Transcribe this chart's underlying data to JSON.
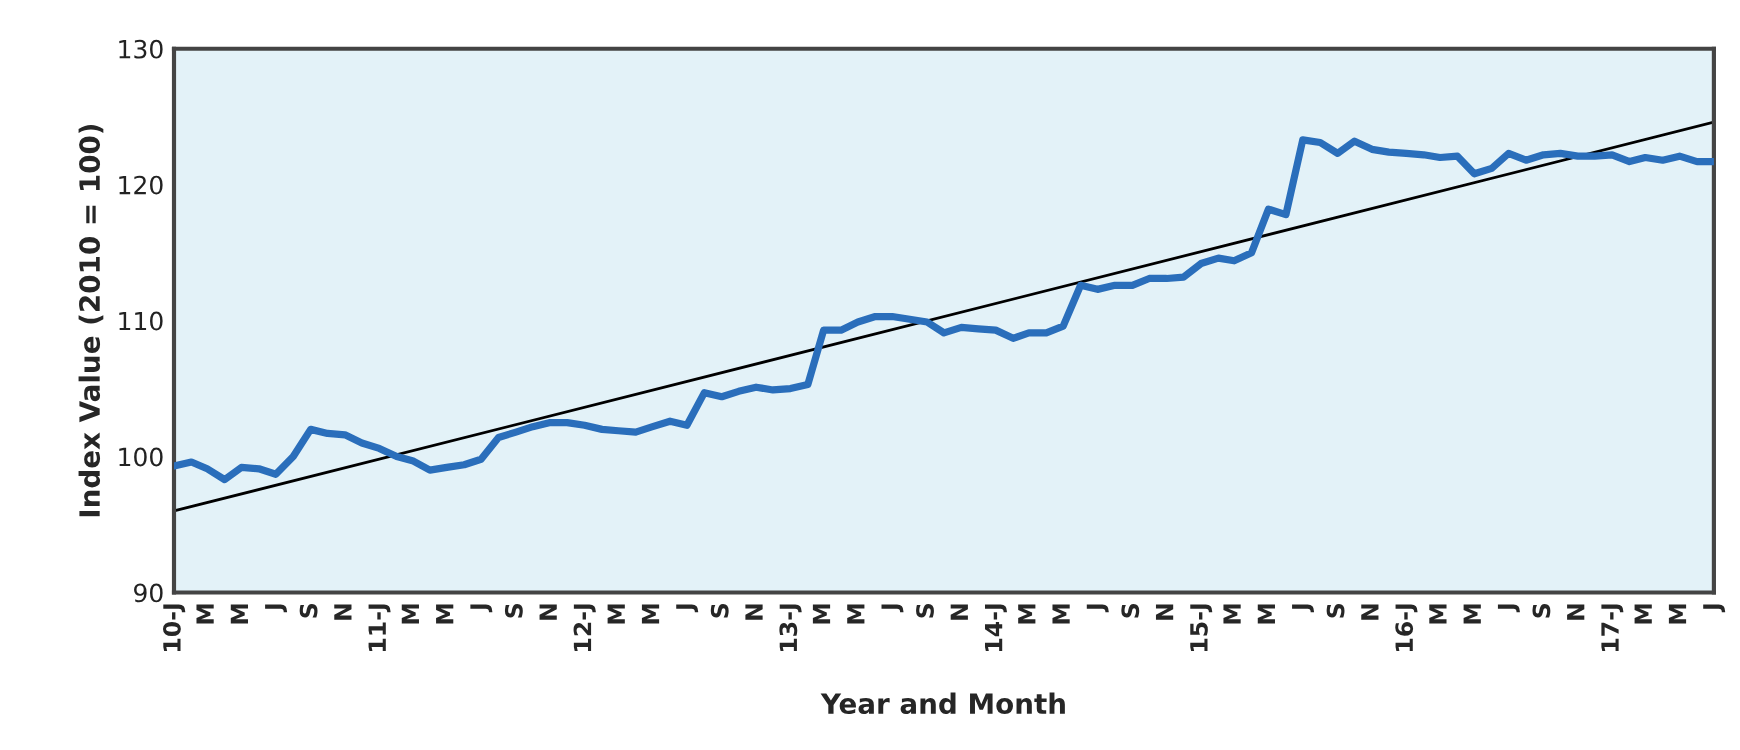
{
  "chart_data": {
    "type": "line",
    "xlabel": "Year and Month",
    "ylabel": "Index Value (2010 = 100)",
    "ylim": [
      90,
      130
    ],
    "yticks": [
      90,
      100,
      110,
      120,
      130
    ],
    "xlim": [
      "2010-01",
      "2017-07"
    ],
    "xticks": [
      {
        "value": "2010-01",
        "label": "10-J"
      },
      {
        "value": "2010-03",
        "label": "M"
      },
      {
        "value": "2010-05",
        "label": "M"
      },
      {
        "value": "2010-07",
        "label": "J"
      },
      {
        "value": "2010-09",
        "label": "S"
      },
      {
        "value": "2010-11",
        "label": "N"
      },
      {
        "value": "2011-01",
        "label": "11-J"
      },
      {
        "value": "2011-03",
        "label": "M"
      },
      {
        "value": "2011-05",
        "label": "M"
      },
      {
        "value": "2011-07",
        "label": "J"
      },
      {
        "value": "2011-09",
        "label": "S"
      },
      {
        "value": "2011-11",
        "label": "N"
      },
      {
        "value": "2012-01",
        "label": "12-J"
      },
      {
        "value": "2012-03",
        "label": "M"
      },
      {
        "value": "2012-05",
        "label": "M"
      },
      {
        "value": "2012-07",
        "label": "J"
      },
      {
        "value": "2012-09",
        "label": "S"
      },
      {
        "value": "2012-11",
        "label": "N"
      },
      {
        "value": "2013-01",
        "label": "13-J"
      },
      {
        "value": "2013-03",
        "label": "M"
      },
      {
        "value": "2013-05",
        "label": "M"
      },
      {
        "value": "2013-07",
        "label": "J"
      },
      {
        "value": "2013-09",
        "label": "S"
      },
      {
        "value": "2013-11",
        "label": "N"
      },
      {
        "value": "2014-01",
        "label": "14-J"
      },
      {
        "value": "2014-03",
        "label": "M"
      },
      {
        "value": "2014-05",
        "label": "M"
      },
      {
        "value": "2014-07",
        "label": "J"
      },
      {
        "value": "2014-09",
        "label": "S"
      },
      {
        "value": "2014-11",
        "label": "N"
      },
      {
        "value": "2015-01",
        "label": "15-J"
      },
      {
        "value": "2015-03",
        "label": "M"
      },
      {
        "value": "2015-05",
        "label": "M"
      },
      {
        "value": "2015-07",
        "label": "J"
      },
      {
        "value": "2015-09",
        "label": "S"
      },
      {
        "value": "2015-11",
        "label": "N"
      },
      {
        "value": "2016-01",
        "label": "16-J"
      },
      {
        "value": "2016-03",
        "label": "M"
      },
      {
        "value": "2016-05",
        "label": "M"
      },
      {
        "value": "2016-07",
        "label": "J"
      },
      {
        "value": "2016-09",
        "label": "S"
      },
      {
        "value": "2016-11",
        "label": "N"
      },
      {
        "value": "2017-01",
        "label": "17-J"
      },
      {
        "value": "2017-03",
        "label": "M"
      },
      {
        "value": "2017-05",
        "label": "M"
      },
      {
        "value": "2017-07",
        "label": "J"
      }
    ],
    "grid": false,
    "legend": false,
    "marker": "none",
    "line_style": "solid",
    "series": [
      {
        "color": "#2a6ebb",
        "x": [
          "2010-01",
          "2010-02",
          "2010-03",
          "2010-04",
          "2010-05",
          "2010-06",
          "2010-07",
          "2010-08",
          "2010-09",
          "2010-10",
          "2010-11",
          "2010-12",
          "2011-01",
          "2011-02",
          "2011-03",
          "2011-04",
          "2011-05",
          "2011-06",
          "2011-07",
          "2011-08",
          "2011-09",
          "2011-10",
          "2011-11",
          "2011-12",
          "2012-01",
          "2012-02",
          "2012-03",
          "2012-04",
          "2012-05",
          "2012-06",
          "2012-07",
          "2012-08",
          "2012-09",
          "2012-10",
          "2012-11",
          "2012-12",
          "2013-01",
          "2013-02",
          "2013-03",
          "2013-04",
          "2013-05",
          "2013-06",
          "2013-07",
          "2013-08",
          "2013-09",
          "2013-10",
          "2013-11",
          "2013-12",
          "2014-01",
          "2014-02",
          "2014-03",
          "2014-04",
          "2014-05",
          "2014-06",
          "2014-07",
          "2014-08",
          "2014-09",
          "2014-10",
          "2014-11",
          "2014-12",
          "2015-01",
          "2015-02",
          "2015-03",
          "2015-04",
          "2015-05",
          "2015-06",
          "2015-07",
          "2015-08",
          "2015-09",
          "2015-10",
          "2015-11",
          "2015-12",
          "2016-01",
          "2016-02",
          "2016-03",
          "2016-04",
          "2016-05",
          "2016-06",
          "2016-07",
          "2016-08",
          "2016-09",
          "2016-10",
          "2016-11",
          "2016-12",
          "2017-01",
          "2017-02",
          "2017-03",
          "2017-04",
          "2017-05",
          "2017-06",
          "2017-07"
        ],
        "values": [
          99.3,
          99.6,
          99.1,
          98.3,
          99.2,
          99.1,
          98.7,
          100.0,
          102.0,
          101.7,
          101.6,
          101.0,
          100.6,
          100.0,
          99.7,
          99.0,
          99.2,
          99.4,
          99.8,
          101.4,
          101.8,
          102.2,
          102.5,
          102.5,
          102.3,
          102.0,
          101.9,
          101.8,
          102.2,
          102.6,
          102.3,
          104.7,
          104.4,
          104.8,
          105.1,
          104.9,
          105.0,
          105.3,
          109.3,
          109.3,
          109.9,
          110.3,
          110.3,
          110.1,
          109.9,
          109.1,
          109.5,
          109.4,
          109.3,
          108.7,
          109.1,
          109.1,
          109.6,
          112.6,
          112.3,
          112.6,
          112.6,
          113.1,
          113.1,
          113.2,
          114.2,
          114.6,
          114.4,
          115.0,
          118.2,
          117.8,
          123.3,
          123.1,
          122.3,
          123.2,
          122.6,
          122.4,
          122.3,
          122.2,
          122.0,
          122.1,
          120.8,
          121.2,
          122.3,
          121.8,
          122.2,
          122.3,
          122.1,
          122.1,
          122.2,
          121.7,
          122.0,
          121.8,
          122.1,
          121.7,
          121.7
        ]
      },
      {
        "type": "line",
        "color": "#000000",
        "x": [
          "2010-01",
          "2017-07"
        ],
        "values": [
          96.0,
          124.6
        ]
      }
    ]
  }
}
